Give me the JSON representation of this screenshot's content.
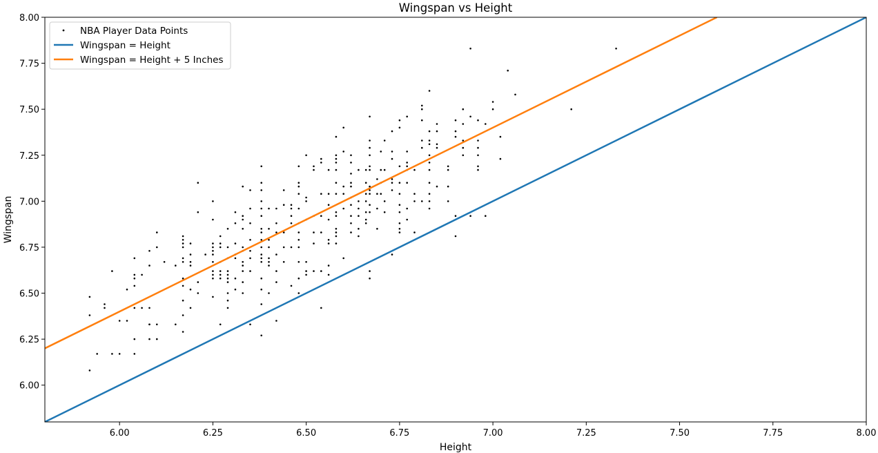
{
  "chart_data": {
    "type": "scatter",
    "title": "Wingspan vs Height",
    "xlabel": "Height",
    "ylabel": "Wingspan",
    "xlim": [
      5.8,
      8.0
    ],
    "ylim": [
      5.8,
      8.0
    ],
    "xticks": [
      "6.00",
      "6.25",
      "6.50",
      "6.75",
      "7.00",
      "7.25",
      "7.50",
      "7.75",
      "8.00"
    ],
    "yticks": [
      "6.00",
      "6.25",
      "6.50",
      "6.75",
      "7.00",
      "7.25",
      "7.50",
      "7.75",
      "8.00"
    ],
    "grid": false,
    "legend_position": "top-left",
    "legend": [
      {
        "label": "NBA Player Data Points",
        "kind": "marker",
        "color": "#000000"
      },
      {
        "label": "Wingspan = Height",
        "kind": "line",
        "color": "#1f77b4"
      },
      {
        "label": "Wingspan = Height + 5 Inches",
        "kind": "line",
        "color": "#ff7f0e"
      }
    ],
    "lines": [
      {
        "name": "Wingspan = Height",
        "color": "#1f77b4",
        "points": [
          [
            5.8,
            5.8
          ],
          [
            8.0,
            8.0
          ]
        ]
      },
      {
        "name": "Wingspan = Height + 5 Inches",
        "color": "#ff7f0e",
        "points": [
          [
            5.8,
            6.2
          ],
          [
            7.6,
            8.0
          ]
        ]
      }
    ],
    "points": [
      [
        5.92,
        6.48
      ],
      [
        5.92,
        6.38
      ],
      [
        5.92,
        6.08
      ],
      [
        5.94,
        6.17
      ],
      [
        5.96,
        6.44
      ],
      [
        5.96,
        6.42
      ],
      [
        5.98,
        6.62
      ],
      [
        5.98,
        6.17
      ],
      [
        6.0,
        6.35
      ],
      [
        6.0,
        6.17
      ],
      [
        6.02,
        6.52
      ],
      [
        6.02,
        6.35
      ],
      [
        6.04,
        6.69
      ],
      [
        6.04,
        6.6
      ],
      [
        6.04,
        6.58
      ],
      [
        6.04,
        6.54
      ],
      [
        6.04,
        6.42
      ],
      [
        6.04,
        6.25
      ],
      [
        6.04,
        6.17
      ],
      [
        6.06,
        6.6
      ],
      [
        6.06,
        6.42
      ],
      [
        6.08,
        6.73
      ],
      [
        6.08,
        6.65
      ],
      [
        6.08,
        6.42
      ],
      [
        6.08,
        6.33
      ],
      [
        6.08,
        6.33
      ],
      [
        6.08,
        6.25
      ],
      [
        6.1,
        6.83
      ],
      [
        6.1,
        6.75
      ],
      [
        6.1,
        6.33
      ],
      [
        6.1,
        6.25
      ],
      [
        6.12,
        6.67
      ],
      [
        6.15,
        6.65
      ],
      [
        6.15,
        6.33
      ],
      [
        6.17,
        6.81
      ],
      [
        6.17,
        6.79
      ],
      [
        6.17,
        6.77
      ],
      [
        6.17,
        6.75
      ],
      [
        6.17,
        6.69
      ],
      [
        6.17,
        6.67
      ],
      [
        6.17,
        6.58
      ],
      [
        6.17,
        6.54
      ],
      [
        6.17,
        6.46
      ],
      [
        6.17,
        6.38
      ],
      [
        6.17,
        6.29
      ],
      [
        6.19,
        6.77
      ],
      [
        6.19,
        6.71
      ],
      [
        6.19,
        6.67
      ],
      [
        6.19,
        6.65
      ],
      [
        6.19,
        6.52
      ],
      [
        6.19,
        6.42
      ],
      [
        6.21,
        7.1
      ],
      [
        6.21,
        6.94
      ],
      [
        6.21,
        6.56
      ],
      [
        6.21,
        6.5
      ],
      [
        6.23,
        6.71
      ],
      [
        6.25,
        7.0
      ],
      [
        6.25,
        6.9
      ],
      [
        6.25,
        6.77
      ],
      [
        6.25,
        6.75
      ],
      [
        6.25,
        6.73
      ],
      [
        6.25,
        6.71
      ],
      [
        6.25,
        6.67
      ],
      [
        6.25,
        6.62
      ],
      [
        6.25,
        6.6
      ],
      [
        6.25,
        6.58
      ],
      [
        6.25,
        6.48
      ],
      [
        6.27,
        6.81
      ],
      [
        6.27,
        6.77
      ],
      [
        6.27,
        6.75
      ],
      [
        6.27,
        6.67
      ],
      [
        6.27,
        6.62
      ],
      [
        6.27,
        6.6
      ],
      [
        6.27,
        6.58
      ],
      [
        6.27,
        6.33
      ],
      [
        6.29,
        6.85
      ],
      [
        6.29,
        6.75
      ],
      [
        6.29,
        6.69
      ],
      [
        6.29,
        6.62
      ],
      [
        6.29,
        6.6
      ],
      [
        6.29,
        6.58
      ],
      [
        6.29,
        6.56
      ],
      [
        6.29,
        6.5
      ],
      [
        6.29,
        6.46
      ],
      [
        6.29,
        6.42
      ],
      [
        6.31,
        6.94
      ],
      [
        6.31,
        6.88
      ],
      [
        6.31,
        6.77
      ],
      [
        6.31,
        6.71
      ],
      [
        6.31,
        6.69
      ],
      [
        6.31,
        6.58
      ],
      [
        6.31,
        6.52
      ],
      [
        6.33,
        7.08
      ],
      [
        6.33,
        6.92
      ],
      [
        6.33,
        6.9
      ],
      [
        6.33,
        6.85
      ],
      [
        6.33,
        6.75
      ],
      [
        6.33,
        6.73
      ],
      [
        6.33,
        6.67
      ],
      [
        6.33,
        6.65
      ],
      [
        6.33,
        6.62
      ],
      [
        6.33,
        6.56
      ],
      [
        6.33,
        6.5
      ],
      [
        6.35,
        7.06
      ],
      [
        6.35,
        6.96
      ],
      [
        6.35,
        6.88
      ],
      [
        6.35,
        6.79
      ],
      [
        6.35,
        6.73
      ],
      [
        6.35,
        6.69
      ],
      [
        6.35,
        6.62
      ],
      [
        6.35,
        6.33
      ],
      [
        6.38,
        7.19
      ],
      [
        6.38,
        7.1
      ],
      [
        6.38,
        7.06
      ],
      [
        6.38,
        7.0
      ],
      [
        6.38,
        6.96
      ],
      [
        6.38,
        6.92
      ],
      [
        6.38,
        6.85
      ],
      [
        6.38,
        6.83
      ],
      [
        6.38,
        6.79
      ],
      [
        6.38,
        6.75
      ],
      [
        6.38,
        6.71
      ],
      [
        6.38,
        6.69
      ],
      [
        6.38,
        6.67
      ],
      [
        6.38,
        6.58
      ],
      [
        6.38,
        6.52
      ],
      [
        6.38,
        6.44
      ],
      [
        6.38,
        6.27
      ],
      [
        6.4,
        6.96
      ],
      [
        6.4,
        6.85
      ],
      [
        6.4,
        6.79
      ],
      [
        6.4,
        6.75
      ],
      [
        6.4,
        6.69
      ],
      [
        6.4,
        6.67
      ],
      [
        6.4,
        6.65
      ],
      [
        6.4,
        6.5
      ],
      [
        6.42,
        6.96
      ],
      [
        6.42,
        6.88
      ],
      [
        6.42,
        6.83
      ],
      [
        6.42,
        6.71
      ],
      [
        6.42,
        6.62
      ],
      [
        6.42,
        6.56
      ],
      [
        6.42,
        6.35
      ],
      [
        6.44,
        7.06
      ],
      [
        6.44,
        6.98
      ],
      [
        6.44,
        6.83
      ],
      [
        6.44,
        6.75
      ],
      [
        6.44,
        6.67
      ],
      [
        6.46,
        6.98
      ],
      [
        6.46,
        6.96
      ],
      [
        6.46,
        6.92
      ],
      [
        6.46,
        6.88
      ],
      [
        6.46,
        6.75
      ],
      [
        6.46,
        6.54
      ],
      [
        6.48,
        7.19
      ],
      [
        6.48,
        7.1
      ],
      [
        6.48,
        7.08
      ],
      [
        6.48,
        7.04
      ],
      [
        6.48,
        6.96
      ],
      [
        6.48,
        6.88
      ],
      [
        6.48,
        6.83
      ],
      [
        6.48,
        6.79
      ],
      [
        6.48,
        6.75
      ],
      [
        6.48,
        6.67
      ],
      [
        6.48,
        6.58
      ],
      [
        6.48,
        6.5
      ],
      [
        6.5,
        7.25
      ],
      [
        6.5,
        7.02
      ],
      [
        6.5,
        7.0
      ],
      [
        6.5,
        6.9
      ],
      [
        6.5,
        6.67
      ],
      [
        6.5,
        6.62
      ],
      [
        6.5,
        6.6
      ],
      [
        6.52,
        7.19
      ],
      [
        6.52,
        7.17
      ],
      [
        6.52,
        6.92
      ],
      [
        6.52,
        6.83
      ],
      [
        6.52,
        6.77
      ],
      [
        6.52,
        6.62
      ],
      [
        6.54,
        7.23
      ],
      [
        6.54,
        7.21
      ],
      [
        6.54,
        7.04
      ],
      [
        6.54,
        6.92
      ],
      [
        6.54,
        6.83
      ],
      [
        6.54,
        6.62
      ],
      [
        6.54,
        6.42
      ],
      [
        6.56,
        7.17
      ],
      [
        6.56,
        7.04
      ],
      [
        6.56,
        6.98
      ],
      [
        6.56,
        6.9
      ],
      [
        6.56,
        6.79
      ],
      [
        6.56,
        6.77
      ],
      [
        6.56,
        6.65
      ],
      [
        6.56,
        6.6
      ],
      [
        6.58,
        7.35
      ],
      [
        6.58,
        7.25
      ],
      [
        6.58,
        7.23
      ],
      [
        6.58,
        7.21
      ],
      [
        6.58,
        7.17
      ],
      [
        6.58,
        7.1
      ],
      [
        6.58,
        7.04
      ],
      [
        6.58,
        6.94
      ],
      [
        6.58,
        6.92
      ],
      [
        6.58,
        6.85
      ],
      [
        6.58,
        6.83
      ],
      [
        6.58,
        6.81
      ],
      [
        6.58,
        6.77
      ],
      [
        6.6,
        7.4
      ],
      [
        6.6,
        7.27
      ],
      [
        6.6,
        7.08
      ],
      [
        6.6,
        7.04
      ],
      [
        6.6,
        6.96
      ],
      [
        6.6,
        6.69
      ],
      [
        6.62,
        7.25
      ],
      [
        6.62,
        7.21
      ],
      [
        6.62,
        7.15
      ],
      [
        6.62,
        7.1
      ],
      [
        6.62,
        7.08
      ],
      [
        6.62,
        7.02
      ],
      [
        6.62,
        6.98
      ],
      [
        6.62,
        6.92
      ],
      [
        6.62,
        6.88
      ],
      [
        6.62,
        6.83
      ],
      [
        6.64,
        7.17
      ],
      [
        6.64,
        7.0
      ],
      [
        6.64,
        6.96
      ],
      [
        6.64,
        6.92
      ],
      [
        6.64,
        6.85
      ],
      [
        6.64,
        6.81
      ],
      [
        6.66,
        7.17
      ],
      [
        6.66,
        7.1
      ],
      [
        6.66,
        7.04
      ],
      [
        6.66,
        7.0
      ],
      [
        6.66,
        6.94
      ],
      [
        6.66,
        6.9
      ],
      [
        6.66,
        6.88
      ],
      [
        6.67,
        7.46
      ],
      [
        6.67,
        7.33
      ],
      [
        6.67,
        7.29
      ],
      [
        6.67,
        7.25
      ],
      [
        6.67,
        7.19
      ],
      [
        6.67,
        7.17
      ],
      [
        6.67,
        7.08
      ],
      [
        6.67,
        7.06
      ],
      [
        6.67,
        7.04
      ],
      [
        6.67,
        6.98
      ],
      [
        6.67,
        6.94
      ],
      [
        6.67,
        6.62
      ],
      [
        6.67,
        6.58
      ],
      [
        6.69,
        7.12
      ],
      [
        6.69,
        7.04
      ],
      [
        6.69,
        6.96
      ],
      [
        6.69,
        6.85
      ],
      [
        6.7,
        7.27
      ],
      [
        6.7,
        7.17
      ],
      [
        6.7,
        7.1
      ],
      [
        6.7,
        7.04
      ],
      [
        6.71,
        7.33
      ],
      [
        6.71,
        7.17
      ],
      [
        6.71,
        7.0
      ],
      [
        6.71,
        6.94
      ],
      [
        6.73,
        7.38
      ],
      [
        6.73,
        7.27
      ],
      [
        6.73,
        7.23
      ],
      [
        6.73,
        7.12
      ],
      [
        6.73,
        7.1
      ],
      [
        6.73,
        7.06
      ],
      [
        6.73,
        6.71
      ],
      [
        6.75,
        7.44
      ],
      [
        6.75,
        7.4
      ],
      [
        6.75,
        7.19
      ],
      [
        6.75,
        7.1
      ],
      [
        6.75,
        7.04
      ],
      [
        6.75,
        6.98
      ],
      [
        6.75,
        6.94
      ],
      [
        6.75,
        6.88
      ],
      [
        6.75,
        6.85
      ],
      [
        6.75,
        6.83
      ],
      [
        6.77,
        7.46
      ],
      [
        6.77,
        7.27
      ],
      [
        6.77,
        7.21
      ],
      [
        6.77,
        7.19
      ],
      [
        6.77,
        7.17
      ],
      [
        6.77,
        7.1
      ],
      [
        6.77,
        6.96
      ],
      [
        6.77,
        6.9
      ],
      [
        6.79,
        7.17
      ],
      [
        6.79,
        7.04
      ],
      [
        6.79,
        7.0
      ],
      [
        6.79,
        6.83
      ],
      [
        6.81,
        7.52
      ],
      [
        6.81,
        7.5
      ],
      [
        6.81,
        7.44
      ],
      [
        6.81,
        7.33
      ],
      [
        6.81,
        7.29
      ],
      [
        6.81,
        7.0
      ],
      [
        6.83,
        7.6
      ],
      [
        6.83,
        7.38
      ],
      [
        6.83,
        7.33
      ],
      [
        6.83,
        7.31
      ],
      [
        6.83,
        7.25
      ],
      [
        6.83,
        7.21
      ],
      [
        6.83,
        7.17
      ],
      [
        6.83,
        7.1
      ],
      [
        6.83,
        7.04
      ],
      [
        6.83,
        7.0
      ],
      [
        6.83,
        6.96
      ],
      [
        6.85,
        7.42
      ],
      [
        6.85,
        7.38
      ],
      [
        6.85,
        7.31
      ],
      [
        6.85,
        7.29
      ],
      [
        6.85,
        7.08
      ],
      [
        6.88,
        7.19
      ],
      [
        6.88,
        7.17
      ],
      [
        6.88,
        7.08
      ],
      [
        6.88,
        7.0
      ],
      [
        6.9,
        7.44
      ],
      [
        6.9,
        7.38
      ],
      [
        6.9,
        7.35
      ],
      [
        6.9,
        6.92
      ],
      [
        6.9,
        6.81
      ],
      [
        6.92,
        7.5
      ],
      [
        6.92,
        7.42
      ],
      [
        6.92,
        7.33
      ],
      [
        6.92,
        7.29
      ],
      [
        6.92,
        7.25
      ],
      [
        6.94,
        7.83
      ],
      [
        6.94,
        7.46
      ],
      [
        6.94,
        6.92
      ],
      [
        6.96,
        7.44
      ],
      [
        6.96,
        7.33
      ],
      [
        6.96,
        7.29
      ],
      [
        6.96,
        7.25
      ],
      [
        6.96,
        7.19
      ],
      [
        6.96,
        7.17
      ],
      [
        6.98,
        7.42
      ],
      [
        6.98,
        6.92
      ],
      [
        7.0,
        7.54
      ],
      [
        7.0,
        7.5
      ],
      [
        7.02,
        7.35
      ],
      [
        7.02,
        7.23
      ],
      [
        7.04,
        7.71
      ],
      [
        7.06,
        7.58
      ],
      [
        7.21,
        7.5
      ],
      [
        7.33,
        7.83
      ]
    ]
  }
}
